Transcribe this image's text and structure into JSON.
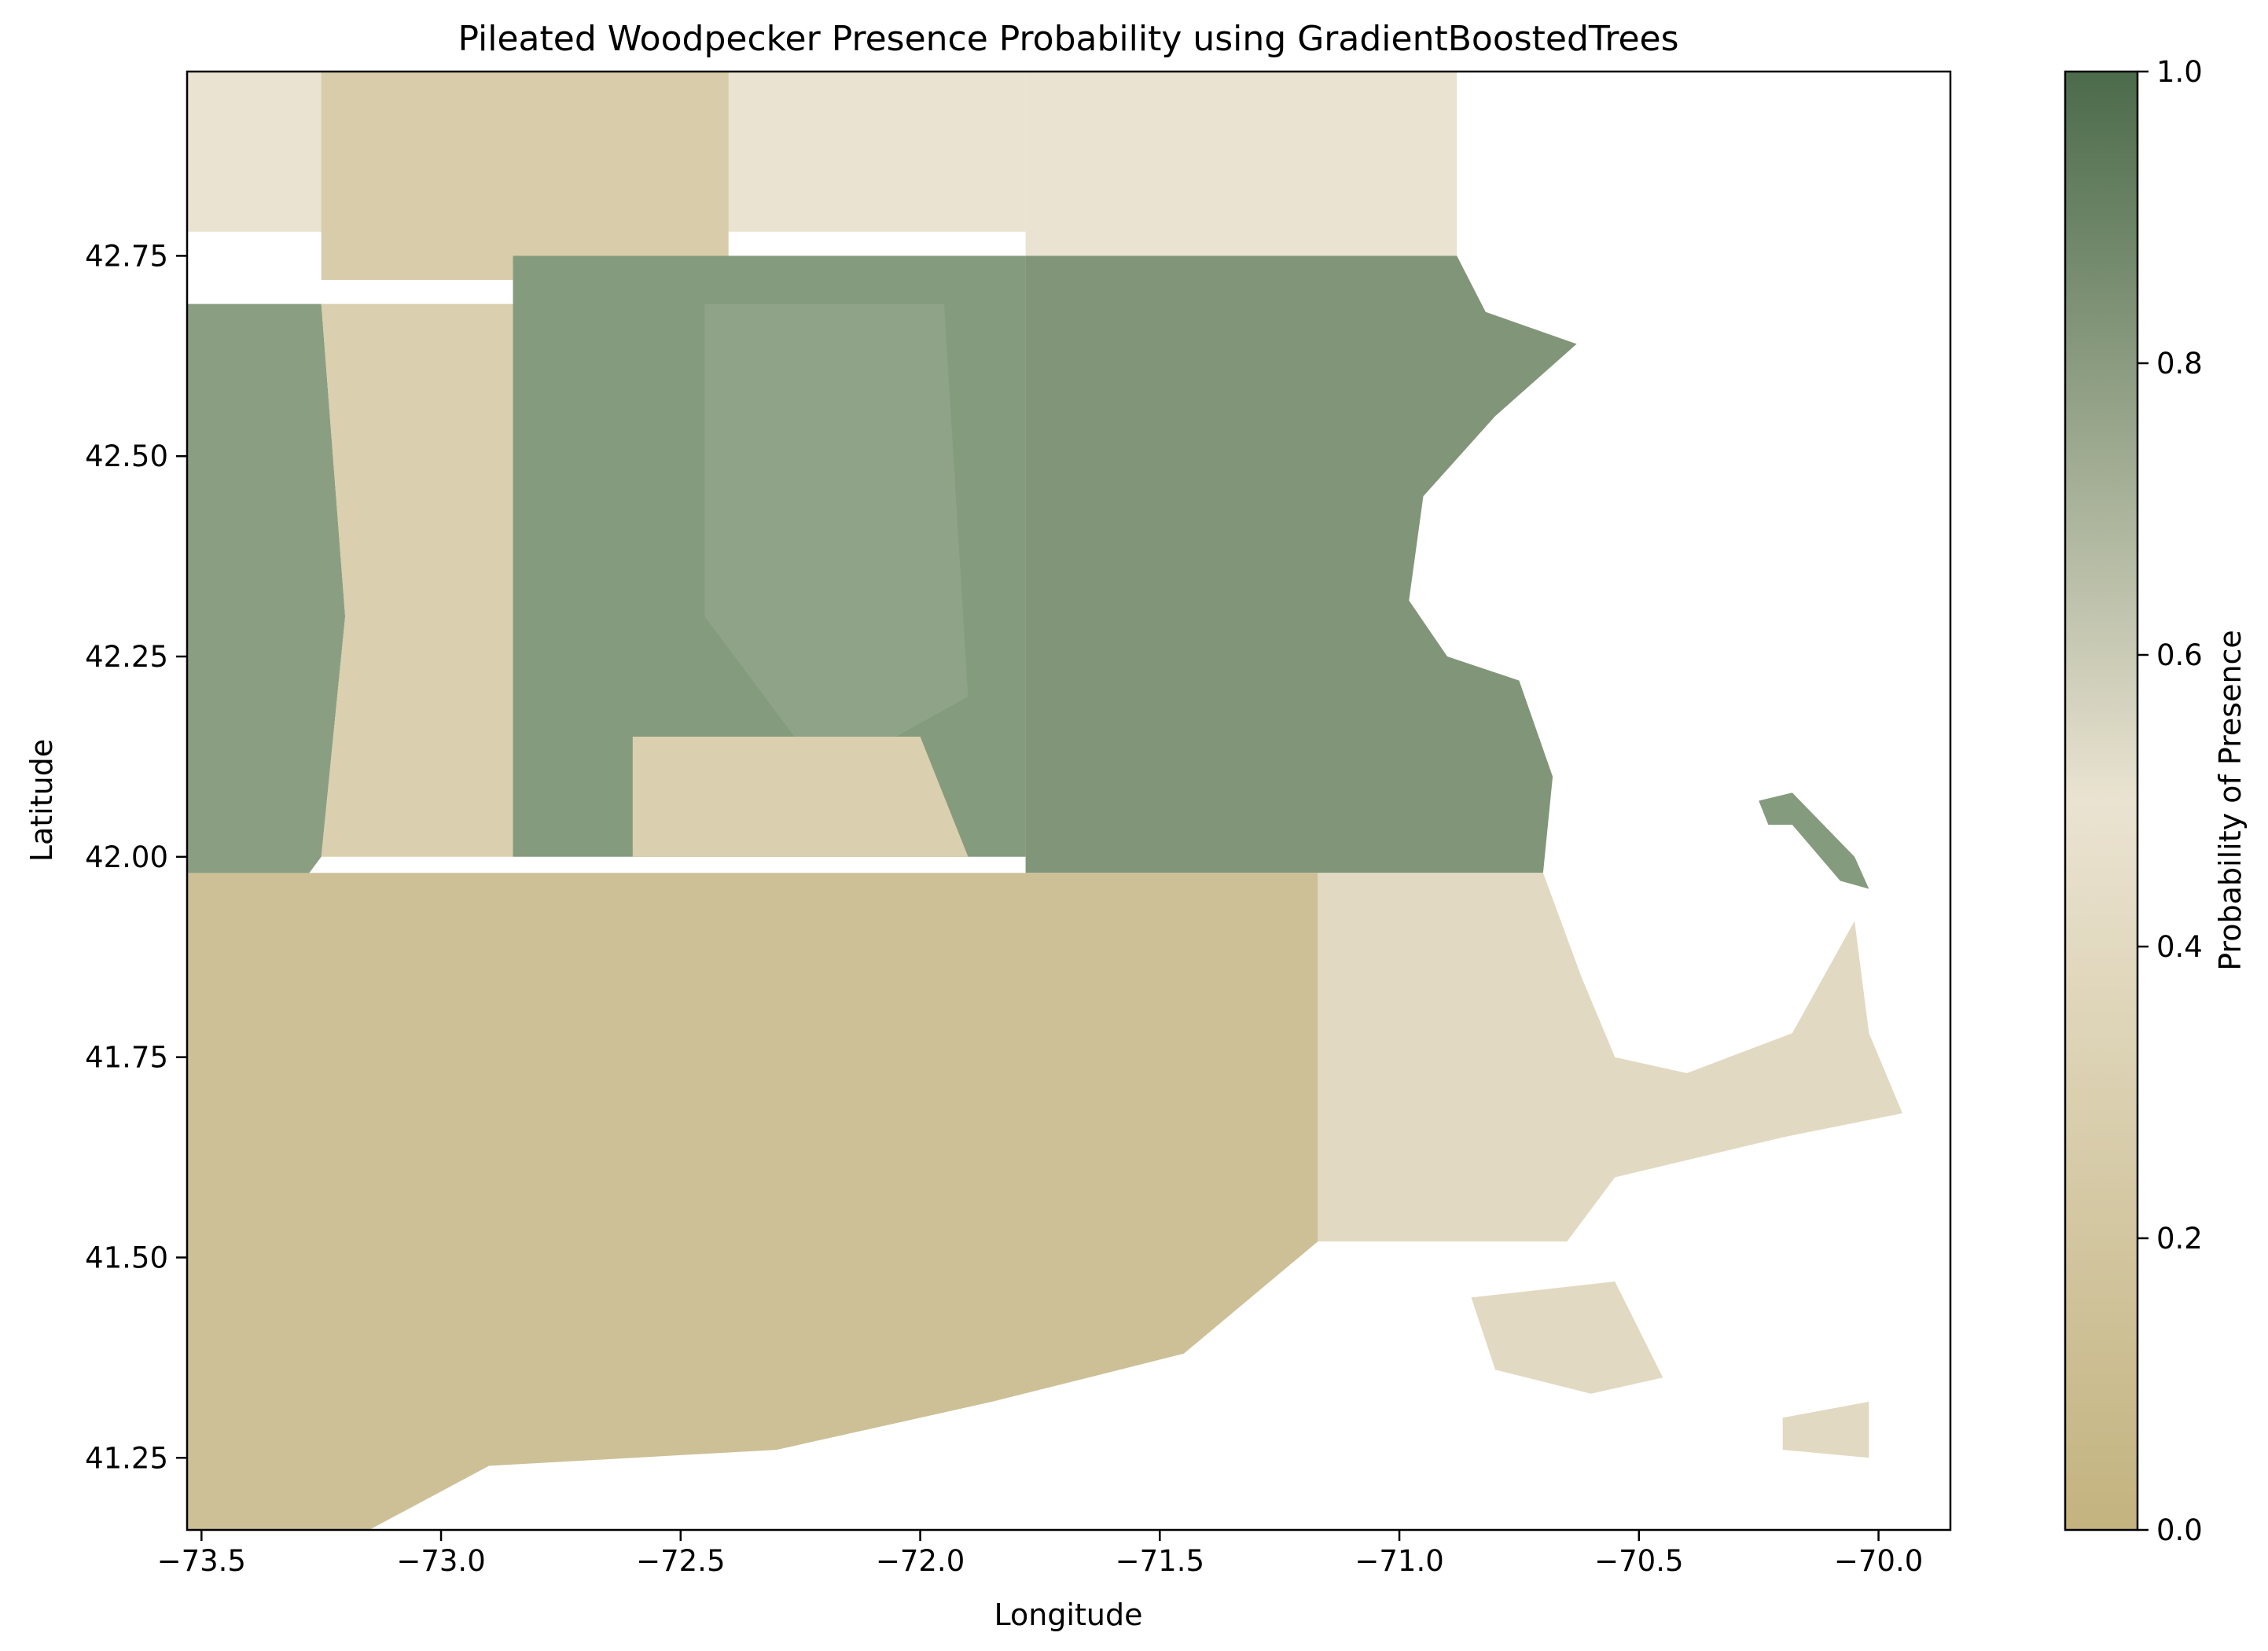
{
  "chart_data": {
    "type": "heatmap",
    "title": "Pileated Woodpecker Presence Probability using GradientBoostedTrees",
    "xlabel": "Longitude",
    "ylabel": "Latitude",
    "xlim": [
      -73.53,
      -69.85
    ],
    "ylim": [
      41.16,
      42.98
    ],
    "x_ticks": [
      -73.5,
      -73.0,
      -72.5,
      -72.0,
      -71.5,
      -71.0,
      -70.5,
      -70.0
    ],
    "x_tick_labels": [
      "−73.5",
      "−73.0",
      "−72.5",
      "−72.0",
      "−71.5",
      "−71.0",
      "−70.5",
      "−70.0"
    ],
    "y_ticks": [
      41.25,
      41.5,
      41.75,
      42.0,
      42.25,
      42.5,
      42.75
    ],
    "y_tick_labels": [
      "41.25",
      "41.50",
      "41.75",
      "42.00",
      "42.25",
      "42.50",
      "42.75"
    ],
    "colorbar": {
      "label": "Probability of Presence",
      "range": [
        0.0,
        1.0
      ],
      "ticks": [
        0.0,
        0.2,
        0.4,
        0.6,
        0.8,
        1.0
      ],
      "tick_labels": [
        "0.0",
        "0.2",
        "0.4",
        "0.6",
        "0.8",
        "1.0"
      ],
      "colors": [
        "#c3b37f",
        "#eae3d1",
        "#4b6b4a"
      ]
    },
    "grid": false,
    "regions": [
      {
        "name": "north-light",
        "value": 0.45,
        "color": "#eae3d1",
        "polygon": [
          [
            -73.53,
            42.98
          ],
          [
            -71.78,
            42.98
          ],
          [
            -71.78,
            42.78
          ],
          [
            -73.53,
            42.78
          ]
        ]
      },
      {
        "name": "north-tan",
        "value": 0.3,
        "color": "#d8ccaa",
        "polygon": [
          [
            -73.25,
            42.98
          ],
          [
            -72.4,
            42.98
          ],
          [
            -72.4,
            42.72
          ],
          [
            -73.25,
            42.72
          ]
        ]
      },
      {
        "name": "northeast-light",
        "value": 0.45,
        "color": "#eae3d1",
        "polygon": [
          [
            -71.78,
            42.98
          ],
          [
            -70.88,
            42.98
          ],
          [
            -70.88,
            42.75
          ],
          [
            -71.78,
            42.75
          ]
        ]
      },
      {
        "name": "west-green",
        "value": 0.82,
        "color": "#8a9e82",
        "polygon": [
          [
            -73.53,
            42.69
          ],
          [
            -73.25,
            42.69
          ],
          [
            -73.2,
            42.3
          ],
          [
            -73.25,
            42.0
          ],
          [
            -73.35,
            41.92
          ],
          [
            -73.53,
            41.9
          ]
        ]
      },
      {
        "name": "west-tan",
        "value": 0.35,
        "color": "#dacfae",
        "polygon": [
          [
            -73.25,
            42.69
          ],
          [
            -72.85,
            42.69
          ],
          [
            -72.85,
            42.0
          ],
          [
            -73.25,
            42.0
          ],
          [
            -73.2,
            42.3
          ]
        ]
      },
      {
        "name": "central-green",
        "value": 0.85,
        "color": "#859b7d",
        "polygon": [
          [
            -72.85,
            42.75
          ],
          [
            -71.78,
            42.75
          ],
          [
            -71.78,
            42.0
          ],
          [
            -72.85,
            42.0
          ]
        ]
      },
      {
        "name": "central-green-light",
        "value": 0.78,
        "color": "#8ea387",
        "polygon": [
          [
            -72.45,
            42.69
          ],
          [
            -71.95,
            42.69
          ],
          [
            -71.9,
            42.2
          ],
          [
            -72.2,
            42.1
          ],
          [
            -72.45,
            42.3
          ]
        ]
      },
      {
        "name": "central-tan-patch",
        "value": 0.35,
        "color": "#dacfae",
        "polygon": [
          [
            -72.6,
            42.15
          ],
          [
            -72.0,
            42.15
          ],
          [
            -71.9,
            42.0
          ],
          [
            -72.6,
            42.0
          ]
        ]
      },
      {
        "name": "east-green",
        "value": 0.86,
        "color": "#819679",
        "polygon": [
          [
            -71.78,
            42.75
          ],
          [
            -70.88,
            42.75
          ],
          [
            -70.82,
            42.68
          ],
          [
            -70.63,
            42.64
          ],
          [
            -70.8,
            42.55
          ],
          [
            -70.95,
            42.45
          ],
          [
            -70.98,
            42.32
          ],
          [
            -70.9,
            42.25
          ],
          [
            -70.75,
            42.22
          ],
          [
            -70.68,
            42.1
          ],
          [
            -70.7,
            41.98
          ],
          [
            -71.78,
            41.98
          ]
        ]
      },
      {
        "name": "south-west-tan",
        "value": 0.22,
        "color": "#cdc097",
        "polygon": [
          [
            -73.53,
            41.98
          ],
          [
            -71.17,
            41.98
          ],
          [
            -71.17,
            41.52
          ],
          [
            -71.45,
            41.38
          ],
          [
            -71.85,
            41.32
          ],
          [
            -72.3,
            41.26
          ],
          [
            -72.9,
            41.24
          ],
          [
            -73.15,
            41.16
          ],
          [
            -73.53,
            41.16
          ]
        ]
      },
      {
        "name": "southeast-tan",
        "value": 0.35,
        "color": "#e2d9c2",
        "polygon": [
          [
            -71.17,
            41.98
          ],
          [
            -70.7,
            41.98
          ],
          [
            -70.62,
            41.85
          ],
          [
            -70.55,
            41.75
          ],
          [
            -70.4,
            41.73
          ],
          [
            -70.18,
            41.78
          ],
          [
            -70.05,
            41.92
          ],
          [
            -70.02,
            41.78
          ],
          [
            -69.95,
            41.68
          ],
          [
            -70.2,
            41.65
          ],
          [
            -70.55,
            41.6
          ],
          [
            -70.65,
            41.52
          ],
          [
            -71.0,
            41.52
          ],
          [
            -71.17,
            41.52
          ]
        ]
      },
      {
        "name": "cape-tip-green",
        "value": 0.8,
        "color": "#859b7d",
        "polygon": [
          [
            -70.25,
            42.07
          ],
          [
            -70.18,
            42.08
          ],
          [
            -70.05,
            42.0
          ],
          [
            -70.02,
            41.96
          ],
          [
            -70.08,
            41.97
          ],
          [
            -70.18,
            42.04
          ],
          [
            -70.23,
            42.04
          ]
        ]
      },
      {
        "name": "marthas-vineyard",
        "value": 0.32,
        "color": "#e2d9c2",
        "polygon": [
          [
            -70.85,
            41.45
          ],
          [
            -70.55,
            41.47
          ],
          [
            -70.45,
            41.35
          ],
          [
            -70.6,
            41.33
          ],
          [
            -70.8,
            41.36
          ]
        ]
      },
      {
        "name": "nantucket",
        "value": 0.32,
        "color": "#e2d9c2",
        "polygon": [
          [
            -70.2,
            41.3
          ],
          [
            -70.02,
            41.32
          ],
          [
            -70.02,
            41.25
          ],
          [
            -70.2,
            41.26
          ]
        ]
      }
    ]
  }
}
